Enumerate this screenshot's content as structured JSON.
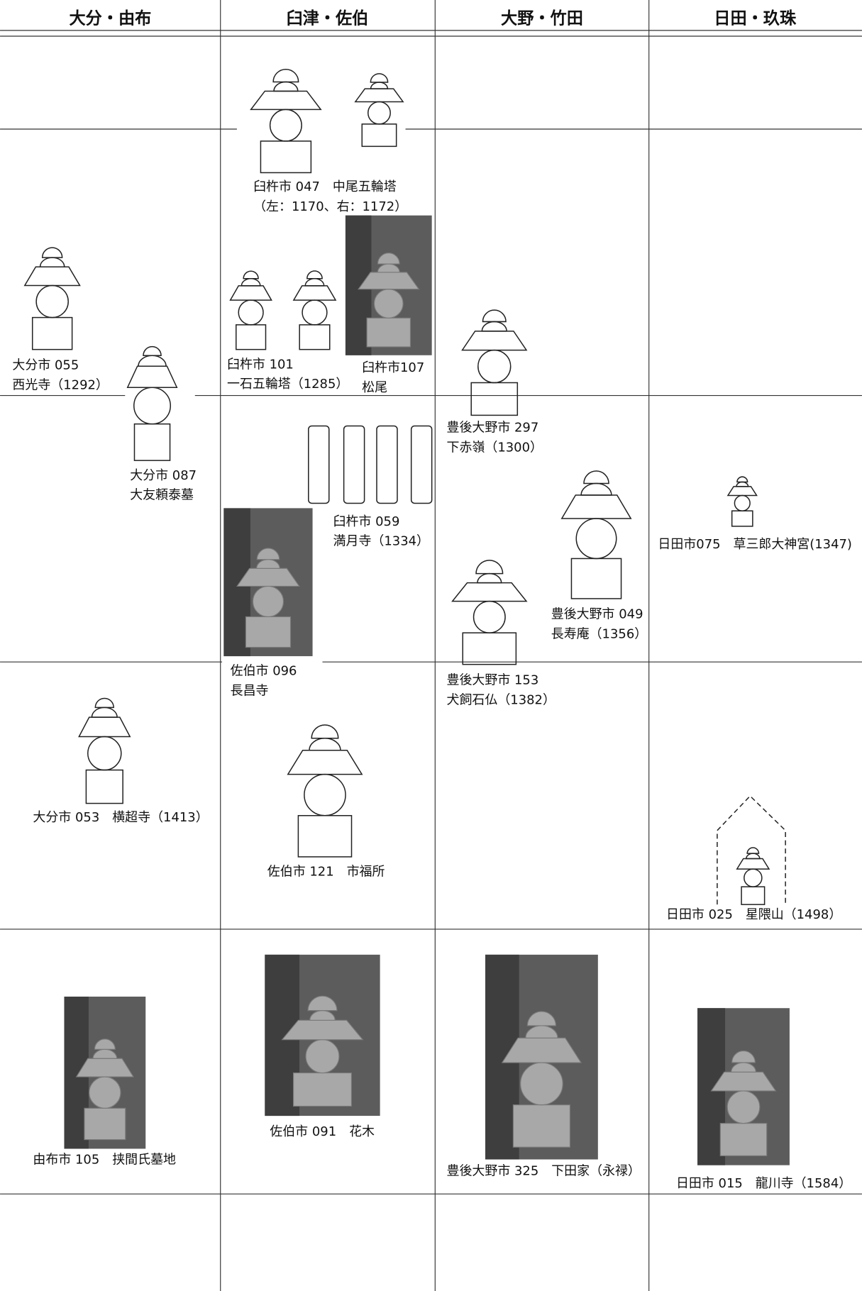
{
  "header": {
    "columns": [
      "大分・由布",
      "臼津・佐伯",
      "大野・竹田",
      "日田・玖珠"
    ]
  },
  "figures": [
    {
      "lines": [
        "臼杵市 047　中尾五輪塔",
        "（左：1170、右：1172）"
      ]
    },
    {
      "lines": [
        "大分市 055",
        "西光寺（1292）"
      ]
    },
    {
      "lines": [
        "臼杵市 101",
        "一石五輪塔（1285）"
      ]
    },
    {
      "lines": [
        "臼杵市107",
        "松尾"
      ]
    },
    {
      "lines": [
        "大分市 087",
        "大友頼泰墓"
      ]
    },
    {
      "lines": [
        "豊後大野市 297",
        "下赤嶺（1300）"
      ]
    },
    {
      "lines": [
        "臼杵市 059",
        "満月寺（1334）"
      ]
    },
    {
      "lines": [
        "日田市075　草三郎大神宮(1347)"
      ]
    },
    {
      "lines": [
        "豊後大野市 049",
        "長寿庵（1356）"
      ]
    },
    {
      "lines": [
        "佐伯市 096",
        "長昌寺"
      ]
    },
    {
      "lines": [
        "豊後大野市 153",
        "犬飼石仏（1382）"
      ]
    },
    {
      "lines": [
        "大分市 053　横超寺（1413）"
      ]
    },
    {
      "lines": [
        "佐伯市 121　市福所"
      ]
    },
    {
      "lines": [
        "日田市 025　星隈山（1498）"
      ]
    },
    {
      "lines": [
        "由布市 105　挟間氏墓地"
      ]
    },
    {
      "lines": [
        "佐伯市 091　花木"
      ]
    },
    {
      "lines": [
        "豊後大野市 325　下田家（永禄）"
      ]
    },
    {
      "lines": [
        "日田市 015　龍川寺（1584）"
      ]
    }
  ]
}
